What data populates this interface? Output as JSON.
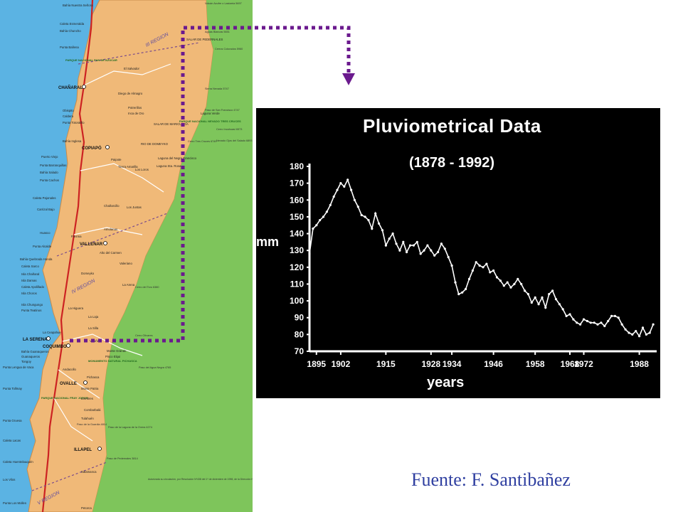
{
  "map": {
    "places": [
      {
        "name": "Bahía Nuestra Señora",
        "kind": "small"
      },
      {
        "name": "Caleta Esmeralda",
        "kind": "small"
      },
      {
        "name": "Bahía Chuncho",
        "kind": "small"
      },
      {
        "name": "Punta Ballena",
        "kind": "small"
      },
      {
        "name": "PARQUE NACIONAL PAN DE AZÚCAR",
        "kind": "park"
      },
      {
        "name": "CHAÑARAL",
        "kind": "city"
      },
      {
        "name": "El Salvador",
        "kind": "small"
      },
      {
        "name": "Diego de Almagro",
        "kind": "small"
      },
      {
        "name": "Potrerillos",
        "kind": "small"
      },
      {
        "name": "Inca de Oro",
        "kind": "small"
      },
      {
        "name": "Obispito",
        "kind": "small"
      },
      {
        "name": "Caldera",
        "kind": "small"
      },
      {
        "name": "Punta Totoralillo",
        "kind": "small"
      },
      {
        "name": "Bahía Inglesa",
        "kind": "small"
      },
      {
        "name": "COPIAPÓ",
        "kind": "city"
      },
      {
        "name": "Puerto Viejo",
        "kind": "small"
      },
      {
        "name": "Paipote",
        "kind": "small"
      },
      {
        "name": "Tierra Amarilla",
        "kind": "small"
      },
      {
        "name": "Los Loros",
        "kind": "small"
      },
      {
        "name": "Punta Barranquillas",
        "kind": "small"
      },
      {
        "name": "Bahía Salado",
        "kind": "small"
      },
      {
        "name": "Punta Cachos",
        "kind": "small"
      },
      {
        "name": "Caleta Pajonales",
        "kind": "small"
      },
      {
        "name": "Chañarcillo",
        "kind": "small"
      },
      {
        "name": "Carrizal Bajo",
        "kind": "small"
      },
      {
        "name": "Amolanas",
        "kind": "small"
      },
      {
        "name": "Los Juntas",
        "kind": "small"
      },
      {
        "name": "Huasco",
        "kind": "small"
      },
      {
        "name": "Freirina",
        "kind": "small"
      },
      {
        "name": "VALLENAR",
        "kind": "city"
      },
      {
        "name": "Punta Alcalde",
        "kind": "small"
      },
      {
        "name": "Alto del Carmen",
        "kind": "small"
      },
      {
        "name": "Bahía Quebrada Honda",
        "kind": "small"
      },
      {
        "name": "Caleta Sarco",
        "kind": "small"
      },
      {
        "name": "Valeriano",
        "kind": "small"
      },
      {
        "name": "Domeyko",
        "kind": "small"
      },
      {
        "name": "Isla Chañaral",
        "kind": "small"
      },
      {
        "name": "Isla Damas",
        "kind": "small"
      },
      {
        "name": "Caleta Apolillado",
        "kind": "small"
      },
      {
        "name": "Isla Choros",
        "kind": "small"
      },
      {
        "name": "La Arena",
        "kind": "small"
      },
      {
        "name": "Isla Chungungo",
        "kind": "small"
      },
      {
        "name": "Punta Teatinos",
        "kind": "small"
      },
      {
        "name": "La Higuera",
        "kind": "small"
      },
      {
        "name": "La Laja",
        "kind": "small"
      },
      {
        "name": "La Silla",
        "kind": "small"
      },
      {
        "name": "La Ceapahue",
        "kind": "small"
      },
      {
        "name": "LA SERENA",
        "kind": "city"
      },
      {
        "name": "COQUIMBO",
        "kind": "city"
      },
      {
        "name": "Bahía Guanaqueros",
        "kind": "small"
      },
      {
        "name": "Guanaqueros",
        "kind": "small"
      },
      {
        "name": "Tongoy",
        "kind": "small"
      },
      {
        "name": "Punta Lengua de Vaca",
        "kind": "small"
      },
      {
        "name": "Vicuña",
        "kind": "small"
      },
      {
        "name": "Monte Grande",
        "kind": "small"
      },
      {
        "name": "Pisco Elqui",
        "kind": "small"
      },
      {
        "name": "MONUMENTO NATURAL PICHASCA",
        "kind": "park"
      },
      {
        "name": "Andacollo",
        "kind": "small"
      },
      {
        "name": "Pichasca",
        "kind": "small"
      },
      {
        "name": "Punta Tollmay",
        "kind": "small"
      },
      {
        "name": "OVALLE",
        "kind": "city"
      },
      {
        "name": "Monte Patria",
        "kind": "small"
      },
      {
        "name": "PARQUE NACIONAL FRAY JORGE",
        "kind": "park"
      },
      {
        "name": "Los Bres",
        "kind": "small"
      },
      {
        "name": "Combarbalá",
        "kind": "small"
      },
      {
        "name": "Punta Gruesa",
        "kind": "small"
      },
      {
        "name": "Tulahuén",
        "kind": "small"
      },
      {
        "name": "Caleta Lacas",
        "kind": "small"
      },
      {
        "name": "Caleta Huentelauquén",
        "kind": "small"
      },
      {
        "name": "ILLAPEL",
        "kind": "city"
      },
      {
        "name": "Salamanca",
        "kind": "small"
      },
      {
        "name": "Los Vilos",
        "kind": "small"
      },
      {
        "name": "Punta Los Molles",
        "kind": "small"
      },
      {
        "name": "Petorca",
        "kind": "small"
      },
      {
        "name": "III REGION",
        "kind": "region"
      },
      {
        "name": "IV REGION",
        "kind": "region"
      },
      {
        "name": "V REGION",
        "kind": "region"
      },
      {
        "name": "SALAR DE PEDERNALES",
        "kind": "small"
      },
      {
        "name": "SALAR DE MARICUNGA",
        "kind": "small"
      },
      {
        "name": "PARQUE NACIONAL NEVADO TRES CRUCES",
        "kind": "park"
      },
      {
        "name": "Laguna del Negro Francisco",
        "kind": "small"
      },
      {
        "name": "Laguna Sta. Rosa",
        "kind": "small"
      },
      {
        "name": "Volcán Azufre o Lastarria 5697",
        "kind": "peak"
      },
      {
        "name": "Aguas Blancas 5651",
        "kind": "peak"
      },
      {
        "name": "Cerros Colorados 5960",
        "kind": "peak"
      },
      {
        "name": "Sierra Nevada 5747",
        "kind": "peak"
      },
      {
        "name": "Laguna Verde",
        "kind": "small"
      },
      {
        "name": "Paso de San Francisco 4747",
        "kind": "peak"
      },
      {
        "name": "Cerro Incahuasi 6573",
        "kind": "peak"
      },
      {
        "name": "Nevado Ojos del Salado 6893",
        "kind": "peak"
      },
      {
        "name": "Cerro Tres Cruces 6749",
        "kind": "peak"
      },
      {
        "name": "Cerro del Toro 6380",
        "kind": "peak"
      },
      {
        "name": "Cerro Olivares",
        "kind": "peak"
      },
      {
        "name": "Paso del Agua Negra 4765",
        "kind": "peak"
      },
      {
        "name": "Paso de la Guardia 4814",
        "kind": "peak"
      },
      {
        "name": "Paso de la Laguna de la Overa 4274",
        "kind": "peak"
      },
      {
        "name": "Paso de Pedernales 3814",
        "kind": "peak"
      },
      {
        "name": "RIO DE DOMEYKO",
        "kind": "small"
      },
      {
        "name": "Autorizada su circulación, por Resolución Nº438 del 1º de diciembre de 1998, de la Dirección Nacional de Fronteras y Límites del Estado.",
        "kind": "note"
      }
    ],
    "colors": {
      "sea": "#5bb3e3",
      "land": "#f0b978",
      "border_land": "#7ec55b",
      "road": "#cc2222"
    }
  },
  "chart_data": {
    "type": "line",
    "title": "Pluviometrical Data",
    "subtitle": "(1878 - 1992)",
    "xlabel": "years",
    "ylabel": "mm",
    "xlim": [
      1893,
      1993
    ],
    "ylim": [
      70,
      180
    ],
    "yticks": [
      "180",
      "170",
      "160",
      "150",
      "140",
      "130",
      "120",
      "110",
      "100",
      "90",
      "80",
      "70"
    ],
    "xticks": [
      "1895",
      "1902",
      "1915",
      "1928",
      "1934",
      "1946",
      "1958",
      "1968",
      "1972",
      "1988"
    ],
    "x": [
      1893,
      1894,
      1895,
      1896,
      1897,
      1898,
      1899,
      1900,
      1901,
      1902,
      1903,
      1904,
      1905,
      1906,
      1907,
      1908,
      1909,
      1910,
      1911,
      1912,
      1913,
      1914,
      1915,
      1916,
      1917,
      1918,
      1919,
      1920,
      1921,
      1922,
      1923,
      1924,
      1925,
      1926,
      1927,
      1928,
      1929,
      1930,
      1931,
      1932,
      1933,
      1934,
      1935,
      1936,
      1937,
      1938,
      1939,
      1940,
      1941,
      1942,
      1943,
      1944,
      1945,
      1946,
      1947,
      1948,
      1949,
      1950,
      1951,
      1952,
      1953,
      1954,
      1955,
      1956,
      1957,
      1958,
      1959,
      1960,
      1961,
      1962,
      1963,
      1964,
      1965,
      1966,
      1967,
      1968,
      1969,
      1970,
      1971,
      1972,
      1973,
      1974,
      1975,
      1976,
      1977,
      1978,
      1979,
      1980,
      1981,
      1982,
      1983,
      1984,
      1985,
      1986,
      1987,
      1988,
      1989,
      1990,
      1991,
      1992
    ],
    "values": [
      128,
      143,
      145,
      148,
      150,
      153,
      157,
      162,
      166,
      170,
      168,
      172,
      166,
      160,
      156,
      151,
      150,
      148,
      143,
      152,
      146,
      142,
      133,
      137,
      140,
      134,
      130,
      135,
      129,
      133,
      133,
      135,
      128,
      130,
      133,
      130,
      127,
      129,
      134,
      131,
      126,
      121,
      111,
      104,
      105,
      107,
      113,
      118,
      123,
      121,
      120,
      122,
      117,
      118,
      114,
      112,
      109,
      111,
      108,
      110,
      113,
      110,
      106,
      104,
      99,
      102,
      98,
      102,
      96,
      104,
      106,
      101,
      98,
      95,
      91,
      92,
      89,
      87,
      86,
      89,
      88,
      87,
      87,
      86,
      87,
      85,
      88,
      91,
      91,
      90,
      86,
      83,
      81,
      80,
      82,
      79,
      84,
      80,
      81,
      86
    ],
    "grid": false,
    "legend": "none",
    "colors": {
      "background": "#000000",
      "line": "#ffffff",
      "connector": "#6b1a8e"
    }
  },
  "source": "Fuente: F. Santibañez"
}
